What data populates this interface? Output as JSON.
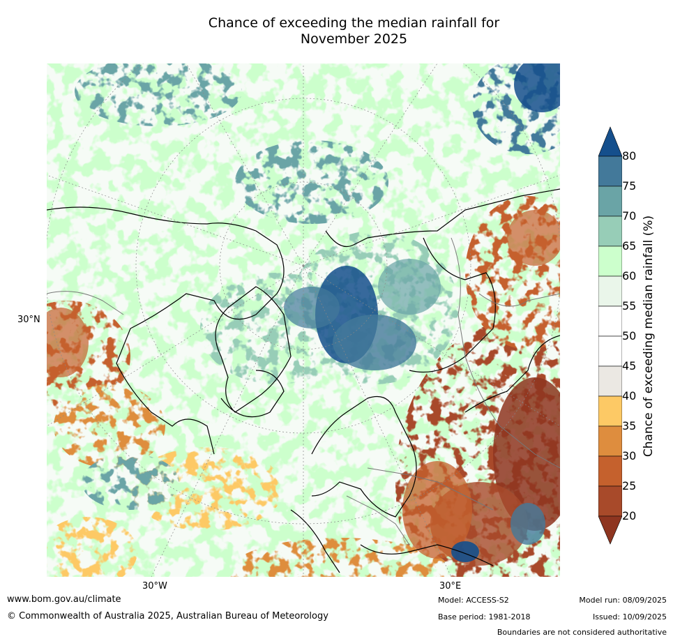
{
  "title_line1": "Chance of exceeding the median rainfall for",
  "title_line2": "November 2025",
  "map_labels": {
    "lat_30n": "30°N",
    "lon_30w": "30°W",
    "lon_30e": "30°E"
  },
  "colorbar": {
    "label": "Chance of exceeding median rainfall (%)",
    "ticks": [
      "80",
      "75",
      "70",
      "65",
      "60",
      "55",
      "50",
      "45",
      "40",
      "35",
      "30",
      "25",
      "20"
    ],
    "colors": {
      "above_80": "#154f8c",
      "75_80": "#43799a",
      "70_75": "#6aa4a6",
      "65_70": "#97cdb7",
      "60_65": "#ccffcc",
      "55_60": "#eaf6ea",
      "50_55": "#ffffff",
      "45_50": "#ffffff",
      "40_45": "#ebe8e3",
      "35_40": "#fdc965",
      "30_35": "#de8d3e",
      "25_30": "#c5612d",
      "20_25": "#a84a2a",
      "below_20": "#8e3520"
    }
  },
  "footer": {
    "website": "www.bom.gov.au/climate",
    "copyright": "© Commonwealth of Australia 2025, Australian Bureau of Meteorology",
    "model": "Model: ACCESS-S2",
    "base_period": "Base period: 1981-2018",
    "model_run": "Model run: 08/09/2025",
    "issued": "Issued: 10/09/2025",
    "disclaimer": "Boundaries are not considered authoritative"
  }
}
